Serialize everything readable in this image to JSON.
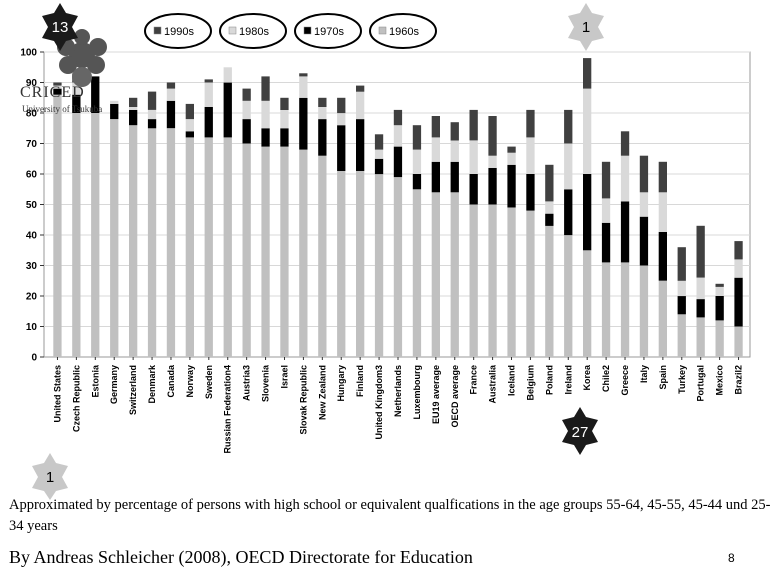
{
  "slide": {
    "caption": "Approximated by percentage of persons with high school or equivalent qualfications  in the age groups 55-64, 45-55, 45-44 und 25-34 years",
    "author": "By Andreas Schleicher (2008), OECD Directorate for Education",
    "page_number": "8",
    "logo_text": "CRICED",
    "logo_subtext": "University of Tsukuba",
    "badges": {
      "top_left": "13",
      "top_right": "1",
      "bottom_left": "1",
      "middle": "27"
    }
  },
  "colors": {
    "s1960": "#c0c0c0",
    "s1970": "#000000",
    "s1980": "#d9d9d9",
    "s1990": "#404040"
  },
  "chart_data": {
    "type": "bar",
    "stacked": true,
    "categories": [
      "United States",
      "Czech Republic",
      "Estonia",
      "Germany",
      "Switzerland",
      "Denmark",
      "Canada",
      "Norway",
      "Sweden",
      "Russian Federation4",
      "Austria3",
      "Slovenia",
      "Israel",
      "Slovak Republic",
      "New Zealand",
      "Hungary",
      "Finland",
      "United Kingdom3",
      "Netherlands",
      "Luxembourg",
      "EU19  average",
      "OECD average",
      "France",
      "Australia",
      "Iceland",
      "Belgium",
      "Poland",
      "Ireland",
      "Korea",
      "Chile2",
      "Greece",
      "Italy",
      "Spain",
      "Turkey",
      "Portugal",
      "Mexico",
      "Brazil2"
    ],
    "series": [
      {
        "name": "1960s",
        "values": [
          86,
          80,
          80,
          78,
          76,
          75,
          75,
          72,
          72,
          72,
          70,
          69,
          69,
          68,
          66,
          61,
          61,
          60,
          59,
          55,
          54,
          54,
          50,
          50,
          49,
          48,
          43,
          40,
          35,
          31,
          31,
          30,
          25,
          14,
          13,
          12,
          10
        ]
      },
      {
        "name": "1970s",
        "values": [
          2,
          6,
          12,
          5,
          5,
          3,
          9,
          2,
          10,
          18,
          8,
          6,
          6,
          17,
          12,
          15,
          17,
          5,
          10,
          5,
          10,
          10,
          10,
          12,
          14,
          12,
          4,
          15,
          25,
          13,
          20,
          16,
          16,
          6,
          6,
          8,
          16
        ]
      },
      {
        "name": "1980s",
        "values": [
          1,
          4,
          0,
          1,
          1,
          3,
          4,
          4,
          8,
          5,
          6,
          9,
          6,
          7,
          4,
          4,
          9,
          3,
          7,
          8,
          8,
          7,
          11,
          4,
          4,
          12,
          4,
          15,
          28,
          8,
          15,
          8,
          13,
          5,
          7,
          3,
          6
        ]
      },
      {
        "name": "1990s",
        "values": [
          1,
          3,
          0,
          0,
          3,
          6,
          2,
          5,
          1,
          0,
          4,
          8,
          4,
          1,
          3,
          5,
          2,
          5,
          5,
          8,
          7,
          6,
          10,
          13,
          2,
          9,
          12,
          11,
          10,
          12,
          8,
          12,
          10,
          11,
          17,
          1,
          6
        ]
      }
    ],
    "ylim": [
      0,
      100
    ],
    "yticks": [
      0,
      10,
      20,
      30,
      40,
      50,
      60,
      70,
      80,
      90,
      100
    ],
    "legend": [
      "1990s",
      "1980s",
      "1970s",
      "1960s"
    ],
    "legend_placement": "top",
    "grid": true
  }
}
